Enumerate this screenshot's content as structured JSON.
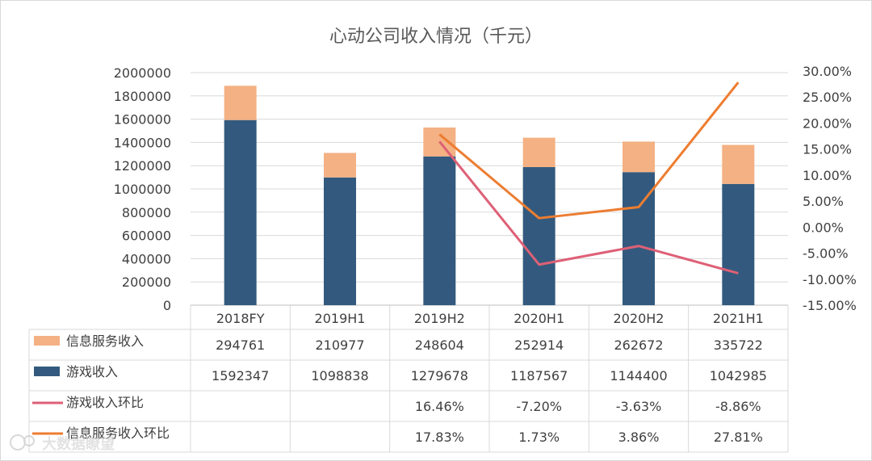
{
  "chart_data": {
    "type": "bar",
    "title": "心动公司收入情况（千元）",
    "categories": [
      "2018FY",
      "2019H1",
      "2019H2",
      "2020H1",
      "2020H2",
      "2021H1"
    ],
    "ylim": [
      0,
      2000000
    ],
    "y_ticks": [
      "2000000",
      "1800000",
      "1600000",
      "1400000",
      "1200000",
      "1000000",
      "800000",
      "600000",
      "400000",
      "200000",
      "0"
    ],
    "y2lim": [
      -0.15,
      0.3
    ],
    "y2_ticks": [
      "30.00%",
      "25.00%",
      "20.00%",
      "15.00%",
      "10.00%",
      "5.00%",
      "0.00%",
      "-5.00%",
      "-10.00%",
      "-15.00%"
    ],
    "grid": true,
    "stacked": true,
    "series": [
      {
        "name": "信息服务收入",
        "type": "bar",
        "color": "#f4b183",
        "values": [
          294761,
          210977,
          248604,
          252914,
          262672,
          335722
        ],
        "labels": [
          "294761",
          "210977",
          "248604",
          "252914",
          "262672",
          "335722"
        ]
      },
      {
        "name": "游戏收入",
        "type": "bar",
        "color": "#335a7e",
        "values": [
          1592347,
          1098838,
          1279678,
          1187567,
          1144400,
          1042985
        ],
        "labels": [
          "1592347",
          "1098838",
          "1279678",
          "1187567",
          "1144400",
          "1042985"
        ]
      },
      {
        "name": "游戏收入环比",
        "type": "line",
        "axis": "right",
        "color": "#de6076",
        "values": [
          null,
          null,
          0.1646,
          -0.072,
          -0.0363,
          -0.0886
        ],
        "labels": [
          "",
          "",
          "16.46%",
          "-7.20%",
          "-3.63%",
          "-8.86%"
        ]
      },
      {
        "name": "信息服务收入环比",
        "type": "line",
        "axis": "right",
        "color": "#ed7d31",
        "values": [
          null,
          null,
          0.1783,
          0.0173,
          0.0386,
          0.2781
        ],
        "labels": [
          "",
          "",
          "17.83%",
          "1.73%",
          "3.86%",
          "27.81%"
        ]
      }
    ],
    "data_table": true
  },
  "watermark": "大数据瞭望"
}
